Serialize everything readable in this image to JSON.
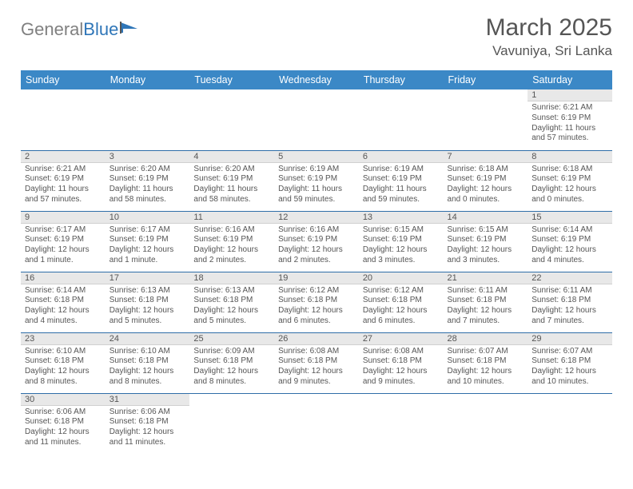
{
  "logo": {
    "part1": "General",
    "part2": "Blue"
  },
  "title": "March 2025",
  "location": "Vavuniya, Sri Lanka",
  "colors": {
    "header_bg": "#3b88c6",
    "header_text": "#ffffff",
    "daynum_bg": "#e8e8e8",
    "cell_border": "#2f6ea8",
    "text": "#555555",
    "logo_gray": "#808080",
    "logo_blue": "#2f76b8"
  },
  "weekdays": [
    "Sunday",
    "Monday",
    "Tuesday",
    "Wednesday",
    "Thursday",
    "Friday",
    "Saturday"
  ],
  "weeks": [
    [
      null,
      null,
      null,
      null,
      null,
      null,
      {
        "day": "1",
        "sunrise": "Sunrise: 6:21 AM",
        "sunset": "Sunset: 6:19 PM",
        "daylight": "Daylight: 11 hours and 57 minutes."
      }
    ],
    [
      {
        "day": "2",
        "sunrise": "Sunrise: 6:21 AM",
        "sunset": "Sunset: 6:19 PM",
        "daylight": "Daylight: 11 hours and 57 minutes."
      },
      {
        "day": "3",
        "sunrise": "Sunrise: 6:20 AM",
        "sunset": "Sunset: 6:19 PM",
        "daylight": "Daylight: 11 hours and 58 minutes."
      },
      {
        "day": "4",
        "sunrise": "Sunrise: 6:20 AM",
        "sunset": "Sunset: 6:19 PM",
        "daylight": "Daylight: 11 hours and 58 minutes."
      },
      {
        "day": "5",
        "sunrise": "Sunrise: 6:19 AM",
        "sunset": "Sunset: 6:19 PM",
        "daylight": "Daylight: 11 hours and 59 minutes."
      },
      {
        "day": "6",
        "sunrise": "Sunrise: 6:19 AM",
        "sunset": "Sunset: 6:19 PM",
        "daylight": "Daylight: 11 hours and 59 minutes."
      },
      {
        "day": "7",
        "sunrise": "Sunrise: 6:18 AM",
        "sunset": "Sunset: 6:19 PM",
        "daylight": "Daylight: 12 hours and 0 minutes."
      },
      {
        "day": "8",
        "sunrise": "Sunrise: 6:18 AM",
        "sunset": "Sunset: 6:19 PM",
        "daylight": "Daylight: 12 hours and 0 minutes."
      }
    ],
    [
      {
        "day": "9",
        "sunrise": "Sunrise: 6:17 AM",
        "sunset": "Sunset: 6:19 PM",
        "daylight": "Daylight: 12 hours and 1 minute."
      },
      {
        "day": "10",
        "sunrise": "Sunrise: 6:17 AM",
        "sunset": "Sunset: 6:19 PM",
        "daylight": "Daylight: 12 hours and 1 minute."
      },
      {
        "day": "11",
        "sunrise": "Sunrise: 6:16 AM",
        "sunset": "Sunset: 6:19 PM",
        "daylight": "Daylight: 12 hours and 2 minutes."
      },
      {
        "day": "12",
        "sunrise": "Sunrise: 6:16 AM",
        "sunset": "Sunset: 6:19 PM",
        "daylight": "Daylight: 12 hours and 2 minutes."
      },
      {
        "day": "13",
        "sunrise": "Sunrise: 6:15 AM",
        "sunset": "Sunset: 6:19 PM",
        "daylight": "Daylight: 12 hours and 3 minutes."
      },
      {
        "day": "14",
        "sunrise": "Sunrise: 6:15 AM",
        "sunset": "Sunset: 6:19 PM",
        "daylight": "Daylight: 12 hours and 3 minutes."
      },
      {
        "day": "15",
        "sunrise": "Sunrise: 6:14 AM",
        "sunset": "Sunset: 6:19 PM",
        "daylight": "Daylight: 12 hours and 4 minutes."
      }
    ],
    [
      {
        "day": "16",
        "sunrise": "Sunrise: 6:14 AM",
        "sunset": "Sunset: 6:18 PM",
        "daylight": "Daylight: 12 hours and 4 minutes."
      },
      {
        "day": "17",
        "sunrise": "Sunrise: 6:13 AM",
        "sunset": "Sunset: 6:18 PM",
        "daylight": "Daylight: 12 hours and 5 minutes."
      },
      {
        "day": "18",
        "sunrise": "Sunrise: 6:13 AM",
        "sunset": "Sunset: 6:18 PM",
        "daylight": "Daylight: 12 hours and 5 minutes."
      },
      {
        "day": "19",
        "sunrise": "Sunrise: 6:12 AM",
        "sunset": "Sunset: 6:18 PM",
        "daylight": "Daylight: 12 hours and 6 minutes."
      },
      {
        "day": "20",
        "sunrise": "Sunrise: 6:12 AM",
        "sunset": "Sunset: 6:18 PM",
        "daylight": "Daylight: 12 hours and 6 minutes."
      },
      {
        "day": "21",
        "sunrise": "Sunrise: 6:11 AM",
        "sunset": "Sunset: 6:18 PM",
        "daylight": "Daylight: 12 hours and 7 minutes."
      },
      {
        "day": "22",
        "sunrise": "Sunrise: 6:11 AM",
        "sunset": "Sunset: 6:18 PM",
        "daylight": "Daylight: 12 hours and 7 minutes."
      }
    ],
    [
      {
        "day": "23",
        "sunrise": "Sunrise: 6:10 AM",
        "sunset": "Sunset: 6:18 PM",
        "daylight": "Daylight: 12 hours and 8 minutes."
      },
      {
        "day": "24",
        "sunrise": "Sunrise: 6:10 AM",
        "sunset": "Sunset: 6:18 PM",
        "daylight": "Daylight: 12 hours and 8 minutes."
      },
      {
        "day": "25",
        "sunrise": "Sunrise: 6:09 AM",
        "sunset": "Sunset: 6:18 PM",
        "daylight": "Daylight: 12 hours and 8 minutes."
      },
      {
        "day": "26",
        "sunrise": "Sunrise: 6:08 AM",
        "sunset": "Sunset: 6:18 PM",
        "daylight": "Daylight: 12 hours and 9 minutes."
      },
      {
        "day": "27",
        "sunrise": "Sunrise: 6:08 AM",
        "sunset": "Sunset: 6:18 PM",
        "daylight": "Daylight: 12 hours and 9 minutes."
      },
      {
        "day": "28",
        "sunrise": "Sunrise: 6:07 AM",
        "sunset": "Sunset: 6:18 PM",
        "daylight": "Daylight: 12 hours and 10 minutes."
      },
      {
        "day": "29",
        "sunrise": "Sunrise: 6:07 AM",
        "sunset": "Sunset: 6:18 PM",
        "daylight": "Daylight: 12 hours and 10 minutes."
      }
    ],
    [
      {
        "day": "30",
        "sunrise": "Sunrise: 6:06 AM",
        "sunset": "Sunset: 6:18 PM",
        "daylight": "Daylight: 12 hours and 11 minutes."
      },
      {
        "day": "31",
        "sunrise": "Sunrise: 6:06 AM",
        "sunset": "Sunset: 6:18 PM",
        "daylight": "Daylight: 12 hours and 11 minutes."
      },
      null,
      null,
      null,
      null,
      null
    ]
  ]
}
